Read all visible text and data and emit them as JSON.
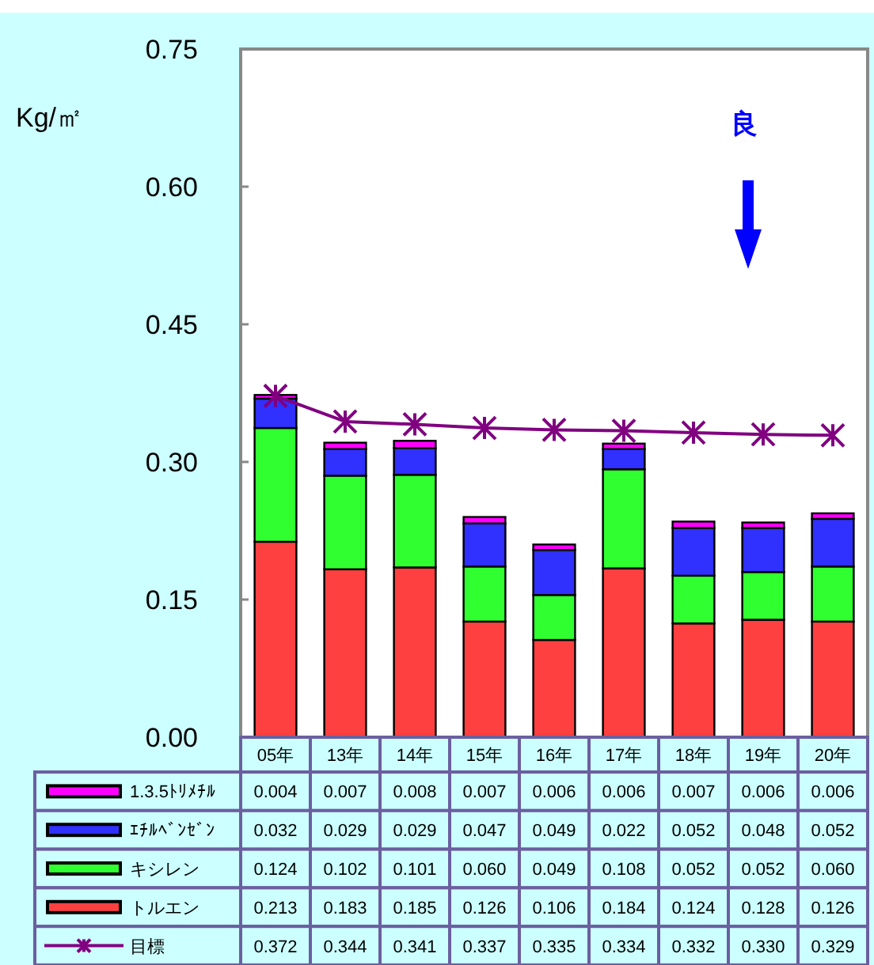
{
  "chart_data": {
    "type": "bar",
    "stacked": true,
    "ylabel": "Kg/㎡",
    "categories": [
      "05年",
      "13年",
      "14年",
      "15年",
      "16年",
      "17年",
      "18年",
      "19年",
      "20年"
    ],
    "series": [
      {
        "name": "トルエン",
        "color": "#ff4040",
        "values": [
          0.213,
          0.183,
          0.185,
          0.126,
          0.106,
          0.184,
          0.124,
          0.128,
          0.126
        ],
        "value_labels": [
          "0.213",
          "0.183",
          "0.185",
          "0.126",
          "0.106",
          "0.184",
          "0.124",
          "0.128",
          "0.126"
        ]
      },
      {
        "name": "キシレン",
        "color": "#30ff30",
        "values": [
          0.124,
          0.102,
          0.101,
          0.06,
          0.049,
          0.108,
          0.052,
          0.052,
          0.06
        ],
        "value_labels": [
          "0.124",
          "0.102",
          "0.101",
          "0.060",
          "0.049",
          "0.108",
          "0.052",
          "0.052",
          "0.060"
        ]
      },
      {
        "name": "ｴﾁﾙﾍﾞﾝｾﾞﾝ",
        "color": "#3030ff",
        "values": [
          0.032,
          0.029,
          0.029,
          0.047,
          0.049,
          0.022,
          0.052,
          0.048,
          0.052
        ],
        "value_labels": [
          "0.032",
          "0.029",
          "0.029",
          "0.047",
          "0.049",
          "0.022",
          "0.052",
          "0.048",
          "0.052"
        ]
      },
      {
        "name": "1.3.5ﾄﾘﾒﾁﾙ",
        "color": "#ff00ff",
        "values": [
          0.004,
          0.007,
          0.008,
          0.007,
          0.006,
          0.006,
          0.007,
          0.006,
          0.006
        ],
        "value_labels": [
          "0.004",
          "0.007",
          "0.008",
          "0.007",
          "0.006",
          "0.006",
          "0.007",
          "0.006",
          "0.006"
        ]
      },
      {
        "name": "目標",
        "type": "line",
        "color": "#800080",
        "marker": "cross",
        "values": [
          0.372,
          0.344,
          0.341,
          0.337,
          0.335,
          0.334,
          0.332,
          0.33,
          0.329
        ],
        "value_labels": [
          "0.372",
          "0.344",
          "0.341",
          "0.337",
          "0.335",
          "0.334",
          "0.332",
          "0.330",
          "0.329"
        ]
      }
    ],
    "ylim": [
      0,
      0.75
    ],
    "yticks": [
      {
        "value": 0,
        "label": "0.00"
      },
      {
        "value": 0.15,
        "label": "0.15"
      },
      {
        "value": 0.3,
        "label": "0.30"
      },
      {
        "value": 0.45,
        "label": "0.45"
      },
      {
        "value": 0.6,
        "label": "0.60"
      },
      {
        "value": 0.75,
        "label": "0.75"
      }
    ],
    "legend": "bottom",
    "grid": false,
    "annotations": [
      "良"
    ]
  }
}
